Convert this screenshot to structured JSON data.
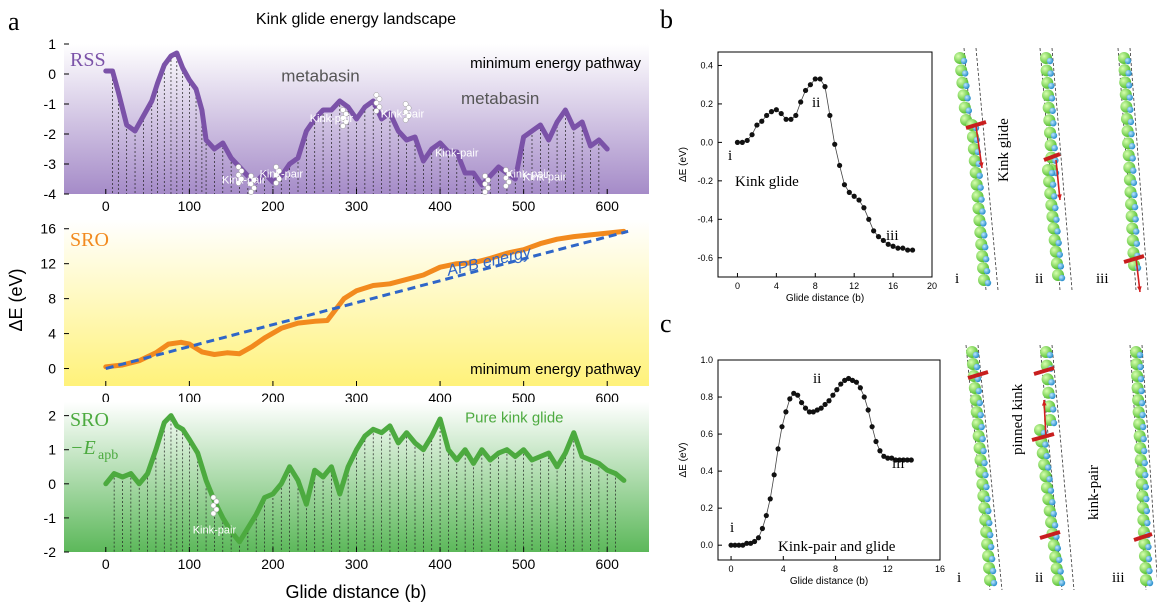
{
  "figure": {
    "title": "Kink glide energy landscape",
    "panel_letters": [
      "a",
      "b",
      "c"
    ],
    "shared_ylabel": "ΔE (eV)",
    "shared_xlabel": "Glide distance (b)",
    "colors": {
      "rss": "#7b52a8",
      "rss_bg_top": "#ffffff",
      "rss_bg_bottom": "#a58bc8",
      "sro": "#f28a1e",
      "sro_bg_top": "#ffffff",
      "sro_bg_bottom": "#fff27a",
      "apb": "#2f66c8",
      "pure": "#4caa3f",
      "pure_bg_top": "#ffffff",
      "pure_bg_bottom": "#5cb85a",
      "kinkpair": "#ffffff",
      "dots": "#111111"
    },
    "icons": [
      "atom-chain-icon",
      "arrow-icon"
    ]
  },
  "chart_data": [
    {
      "type": "line",
      "panel": "a-top",
      "label": "RSS",
      "annotations": [
        "minimum energy pathway",
        "metabasin",
        "metabasin",
        "Kink-pair",
        "Kink-pair",
        "Kink-pair",
        "Kink-pair",
        "Kink-pair",
        "Kink-pair",
        "Kink-pair"
      ],
      "xlim": [
        -50,
        650
      ],
      "ylim": [
        -4,
        1
      ],
      "xticks": [
        0,
        100,
        200,
        300,
        400,
        500,
        600
      ],
      "yticks": [
        -4,
        -3,
        -2,
        -1,
        0,
        1
      ],
      "series": [
        {
          "x": [
            0,
            8,
            15,
            25,
            35,
            45,
            55,
            62,
            70,
            78,
            85,
            92,
            100,
            108,
            115,
            120,
            130,
            140,
            150,
            160,
            170,
            180,
            190,
            200,
            210,
            220,
            230,
            240,
            250,
            260,
            270,
            280,
            290,
            300,
            310,
            320,
            330,
            340,
            350,
            360,
            370,
            380,
            390,
            400,
            410,
            420,
            430,
            440,
            450,
            460,
            470,
            480,
            490,
            500,
            510,
            520,
            530,
            540,
            550,
            560,
            570,
            580,
            590,
            600
          ],
          "y": [
            0.1,
            0.1,
            -0.6,
            -1.7,
            -1.9,
            -1.4,
            -0.9,
            -0.3,
            0.3,
            0.6,
            0.7,
            0.2,
            -0.2,
            -0.5,
            -1.2,
            -2.2,
            -2.5,
            -2.3,
            -2.8,
            -3.1,
            -3.4,
            -3.6,
            -3.3,
            -3.6,
            -3.4,
            -3.0,
            -2.8,
            -1.9,
            -1.5,
            -1.2,
            -1.2,
            -0.9,
            -1.1,
            -1.5,
            -1.1,
            -0.9,
            -1.5,
            -1.3,
            -1.9,
            -2.2,
            -2.1,
            -2.9,
            -2.5,
            -2.3,
            -2.6,
            -2.6,
            -3.3,
            -3.3,
            -3.7,
            -3.4,
            -3.1,
            -3.3,
            -3.5,
            -2.1,
            -1.9,
            -1.7,
            -2.2,
            -1.6,
            -1.2,
            -1.8,
            -1.6,
            -2.4,
            -2.2,
            -2.5
          ]
        }
      ]
    },
    {
      "type": "line",
      "panel": "a-middle",
      "label": "SRO",
      "annotations": [
        "APB energy",
        "minimum energy pathway"
      ],
      "xlim": [
        -50,
        650
      ],
      "ylim": [
        -2,
        17
      ],
      "xticks": [
        0,
        100,
        200,
        300,
        400,
        500,
        600
      ],
      "yticks": [
        0,
        4,
        8,
        12,
        16
      ],
      "series": [
        {
          "x": [
            0,
            20,
            40,
            60,
            75,
            90,
            100,
            115,
            130,
            145,
            160,
            175,
            190,
            210,
            230,
            250,
            265,
            285,
            300,
            320,
            340,
            360,
            380,
            400,
            420,
            440,
            460,
            480,
            500,
            520,
            540,
            560,
            580,
            600,
            620
          ],
          "y": [
            0.2,
            0.4,
            0.9,
            1.8,
            2.8,
            3.0,
            2.8,
            1.9,
            1.6,
            1.8,
            1.7,
            2.5,
            3.5,
            4.6,
            5.2,
            5.4,
            5.5,
            8.0,
            8.9,
            9.5,
            9.7,
            10.2,
            10.7,
            11.6,
            12.0,
            12.1,
            12.6,
            13.2,
            13.6,
            14.3,
            14.8,
            15.1,
            15.3,
            15.5,
            15.7
          ]
        },
        {
          "name": "APB energy",
          "x": [
            0,
            625
          ],
          "y": [
            0,
            15.7
          ]
        }
      ]
    },
    {
      "type": "line",
      "panel": "a-bottom",
      "label": "SRO −E_apb",
      "annotations": [
        "Pure kink glide",
        "Kink-pair"
      ],
      "xlim": [
        -50,
        650
      ],
      "ylim": [
        -2,
        2.4
      ],
      "xticks": [
        0,
        100,
        200,
        300,
        400,
        500,
        600
      ],
      "yticks": [
        -2,
        -1,
        0,
        1,
        2
      ],
      "series": [
        {
          "x": [
            0,
            10,
            20,
            30,
            40,
            50,
            60,
            70,
            78,
            85,
            92,
            100,
            110,
            120,
            130,
            140,
            150,
            160,
            170,
            180,
            190,
            200,
            210,
            220,
            230,
            240,
            250,
            260,
            270,
            280,
            290,
            300,
            310,
            320,
            330,
            340,
            350,
            360,
            370,
            380,
            390,
            400,
            410,
            420,
            430,
            440,
            450,
            460,
            470,
            480,
            490,
            500,
            510,
            520,
            530,
            540,
            550,
            560,
            570,
            580,
            590,
            600,
            610,
            620
          ],
          "y": [
            0.0,
            0.3,
            0.2,
            0.3,
            0.0,
            0.3,
            1.0,
            1.8,
            2.0,
            1.7,
            1.6,
            1.3,
            0.9,
            0.1,
            -0.5,
            -1.0,
            -1.4,
            -1.7,
            -1.3,
            -0.9,
            -0.4,
            -0.3,
            0.0,
            0.5,
            0.1,
            -0.6,
            0.4,
            0.2,
            0.5,
            -0.3,
            0.5,
            1.0,
            1.4,
            1.6,
            1.5,
            1.7,
            1.2,
            1.5,
            1.2,
            1.0,
            1.4,
            1.9,
            1.0,
            0.7,
            1.0,
            0.6,
            1.0,
            0.7,
            0.9,
            1.0,
            0.8,
            1.0,
            0.7,
            0.8,
            0.9,
            0.5,
            0.9,
            1.5,
            0.8,
            0.7,
            0.6,
            0.4,
            0.3,
            0.1
          ]
        }
      ]
    },
    {
      "type": "scatter",
      "panel": "b",
      "ylabel": "ΔE (eV)",
      "xlabel": "Glide distance (b)",
      "caption": "Kink glide",
      "markers": [
        "i",
        "ii",
        "iii"
      ],
      "xlim": [
        -2,
        20
      ],
      "ylim": [
        -0.7,
        0.47
      ],
      "xticks": [
        0,
        4,
        8,
        12,
        16,
        20
      ],
      "yticks": [
        -0.6,
        -0.4,
        -0.2,
        0.0,
        0.2,
        0.4
      ],
      "x": [
        0,
        0.5,
        1.0,
        1.5,
        2.0,
        2.5,
        3.0,
        3.5,
        4.0,
        4.5,
        5.0,
        5.5,
        6.0,
        6.5,
        7.0,
        7.5,
        8.0,
        8.5,
        9.0,
        9.5,
        10.0,
        10.5,
        11.0,
        11.5,
        12.0,
        12.5,
        13.0,
        13.5,
        14.0,
        14.5,
        15.0,
        15.5,
        16.0,
        16.5,
        17.0,
        17.5,
        18.0
      ],
      "y": [
        0.0,
        0.0,
        0.01,
        0.04,
        0.09,
        0.11,
        0.14,
        0.16,
        0.17,
        0.15,
        0.12,
        0.12,
        0.14,
        0.21,
        0.27,
        0.3,
        0.33,
        0.33,
        0.29,
        0.14,
        -0.01,
        -0.12,
        -0.22,
        -0.26,
        -0.28,
        -0.3,
        -0.34,
        -0.4,
        -0.46,
        -0.49,
        -0.51,
        -0.53,
        -0.54,
        -0.55,
        -0.55,
        -0.56,
        -0.56
      ]
    },
    {
      "type": "scatter",
      "panel": "c",
      "ylabel": "ΔE (eV)",
      "xlabel": "Glide distance (b)",
      "caption": "Kink-pair and glide",
      "markers": [
        "i",
        "ii",
        "iii"
      ],
      "xlim": [
        -1,
        16
      ],
      "ylim": [
        -0.08,
        1.0
      ],
      "xticks": [
        0,
        4,
        8,
        12,
        16
      ],
      "yticks": [
        0.0,
        0.2,
        0.4,
        0.6,
        0.8,
        1.0
      ],
      "x": [
        0,
        0.3,
        0.6,
        0.9,
        1.2,
        1.5,
        1.8,
        2.1,
        2.4,
        2.7,
        3.0,
        3.3,
        3.6,
        3.9,
        4.2,
        4.5,
        4.8,
        5.1,
        5.4,
        5.7,
        6.0,
        6.3,
        6.6,
        6.9,
        7.2,
        7.5,
        7.8,
        8.1,
        8.4,
        8.7,
        9.0,
        9.3,
        9.6,
        9.9,
        10.2,
        10.5,
        10.8,
        11.1,
        11.4,
        11.7,
        12.0,
        12.3,
        12.6,
        12.9,
        13.2,
        13.5,
        13.8
      ],
      "y": [
        0.0,
        0.0,
        0.0,
        0.0,
        0.01,
        0.01,
        0.02,
        0.04,
        0.09,
        0.16,
        0.25,
        0.38,
        0.52,
        0.64,
        0.72,
        0.79,
        0.82,
        0.81,
        0.77,
        0.74,
        0.72,
        0.72,
        0.73,
        0.74,
        0.76,
        0.78,
        0.81,
        0.84,
        0.87,
        0.89,
        0.9,
        0.89,
        0.88,
        0.85,
        0.8,
        0.73,
        0.64,
        0.56,
        0.51,
        0.48,
        0.47,
        0.47,
        0.46,
        0.46,
        0.46,
        0.46,
        0.46
      ]
    }
  ]
}
